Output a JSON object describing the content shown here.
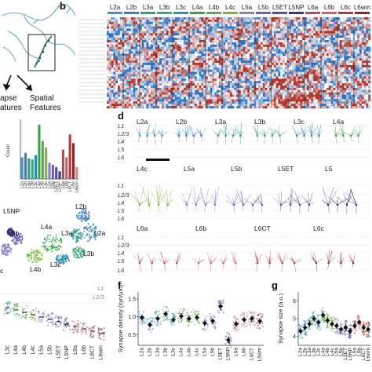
{
  "panels": {
    "b": {
      "letter": "b"
    },
    "d": {
      "letter": "d"
    },
    "f": {
      "letter": "f",
      "ylabel": "Synapse density (syn/µm)",
      "yticks": [
        "0.5",
        "1.0",
        "1.5"
      ]
    },
    "g": {
      "letter": "g",
      "ylabel": "Synapse size (a.u.)",
      "yticks": [
        "4",
        "5",
        "6"
      ]
    }
  },
  "overview": {
    "synapse_features_label": [
      "apse",
      "atures"
    ],
    "spatial_features_label": [
      "Spatial",
      "Features"
    ]
  },
  "cell_types": [
    "L2a",
    "L2b",
    "L3a",
    "L3b",
    "L3c",
    "L4a",
    "L4b",
    "L4c",
    "L5a",
    "L5b",
    "L5ET",
    "L5NP",
    "L6a",
    "L6b",
    "L6CT",
    "L6c",
    "L6wm"
  ],
  "heatmap": {
    "header_labels": [
      "L2a",
      "L2b",
      "L3a",
      "L3b",
      "L3c",
      "L4a",
      "L4b",
      "L4c",
      "L5a",
      "L5b",
      "L5ET",
      "L5NP",
      "L6a",
      "L6b",
      "L6c",
      "L6wm"
    ],
    "header_colors": [
      "#4a90c8",
      "#3b7fc0",
      "#2f9d95",
      "#3aa87a",
      "#2c8fb0",
      "#3aa34a",
      "#5aa84a",
      "#7bb843",
      "#8e7cc3",
      "#6f5fb0",
      "#5b4aa0",
      "#3d3580",
      "#b84a5a",
      "#c86470",
      "#b83a3a",
      "#8a2a2a"
    ]
  },
  "bar_chart": {
    "ylabel": "Count",
    "categories": [
      "L2a",
      "L2b",
      "L3a",
      "L3b",
      "L3c",
      "L4a",
      "L4b",
      "L4c",
      "L5a",
      "L5b",
      "L5ET",
      "L5NP",
      "L6a",
      "L6b",
      "L6CT",
      "L6c",
      "L6wm"
    ],
    "values": [
      40,
      48,
      38,
      36,
      44,
      100,
      70,
      58,
      30,
      26,
      22,
      14,
      54,
      40,
      82,
      66,
      22
    ],
    "colors": [
      "#4a90c8",
      "#3b7fc0",
      "#2f9d95",
      "#3aa87a",
      "#2c8fb0",
      "#3aa34a",
      "#5aa84a",
      "#7bb843",
      "#8e7cc3",
      "#6f5fb0",
      "#5b4aa0",
      "#3d3580",
      "#b84a5a",
      "#c86470",
      "#b83a3a",
      "#8a2a2a",
      "#d08a8a"
    ]
  },
  "umap": {
    "labels": [
      "L2b",
      "L2a",
      "L3a",
      "L3b",
      "L3c",
      "L4a",
      "L4b",
      "L5NP",
      "L5b",
      "c"
    ]
  },
  "layers": [
    "L1",
    "L2/3",
    "L4",
    "L5",
    "L6"
  ],
  "morphology_rows": [
    {
      "types": [
        "L2a",
        "L2b",
        "L3a",
        "L3b",
        "L3c",
        "L4a"
      ]
    },
    {
      "types": [
        "L4c",
        "L5a",
        "L5b",
        "L5ET",
        "L5"
      ]
    },
    {
      "types": [
        "L6a",
        "L6b",
        "L6CT",
        "L6c"
      ]
    }
  ],
  "strip_e": {
    "layer_labels": [
      "L1",
      "L2/3"
    ],
    "xticks": [
      "L3c",
      "L4a",
      "L4b",
      "L4c",
      "L5a",
      "L5b",
      "L5ET",
      "L5NP",
      "L6a",
      "L6b",
      "L6CT",
      "L6wm"
    ]
  },
  "chart_data": [
    {
      "type": "bar",
      "categories": [
        "L2a",
        "L2b",
        "L3a",
        "L3b",
        "L3c",
        "L4a",
        "L4b",
        "L4c",
        "L5a",
        "L5b",
        "L5ET",
        "L5NP",
        "L6a",
        "L6b",
        "L6CT",
        "L6c",
        "L6wm"
      ],
      "values": [
        40,
        48,
        38,
        36,
        44,
        100,
        70,
        58,
        30,
        26,
        22,
        14,
        54,
        40,
        82,
        66,
        22
      ],
      "ylabel": "Count"
    },
    {
      "type": "scatter",
      "categories": [
        "L2a",
        "L2b",
        "L3a",
        "L3b",
        "L3c",
        "L4a",
        "L4b",
        "L4c",
        "L5a",
        "L5b",
        "L5ET",
        "L5NP",
        "L6a",
        "L6b",
        "L6CT",
        "L6wm"
      ],
      "means": [
        0.98,
        0.78,
        0.95,
        1.08,
        0.92,
        1.02,
        0.95,
        0.98,
        0.82,
        0.88,
        1.3,
        0.35,
        0.8,
        0.92,
        0.95,
        0.88
      ],
      "ylabel": "Synapse density (syn/µm)",
      "ylim": [
        0.2,
        1.7
      ]
    },
    {
      "type": "scatter",
      "categories": [
        "L2a",
        "L2b",
        "L3a",
        "L3b",
        "L3c",
        "L4a",
        "L4b",
        "L4c",
        "L5a",
        "L5b",
        "L5ET",
        "L5NP",
        "L6a",
        "L6b",
        "L6CT",
        "L6wm"
      ],
      "means": [
        4.3,
        4.5,
        4.7,
        5.0,
        4.8,
        5.2,
        4.9,
        4.7,
        4.6,
        4.4,
        4.5,
        4.3,
        4.6,
        4.8,
        4.5,
        4.4
      ],
      "ylabel": "Synapse size (a.u.)",
      "ylim": [
        3.5,
        6.5
      ]
    }
  ]
}
